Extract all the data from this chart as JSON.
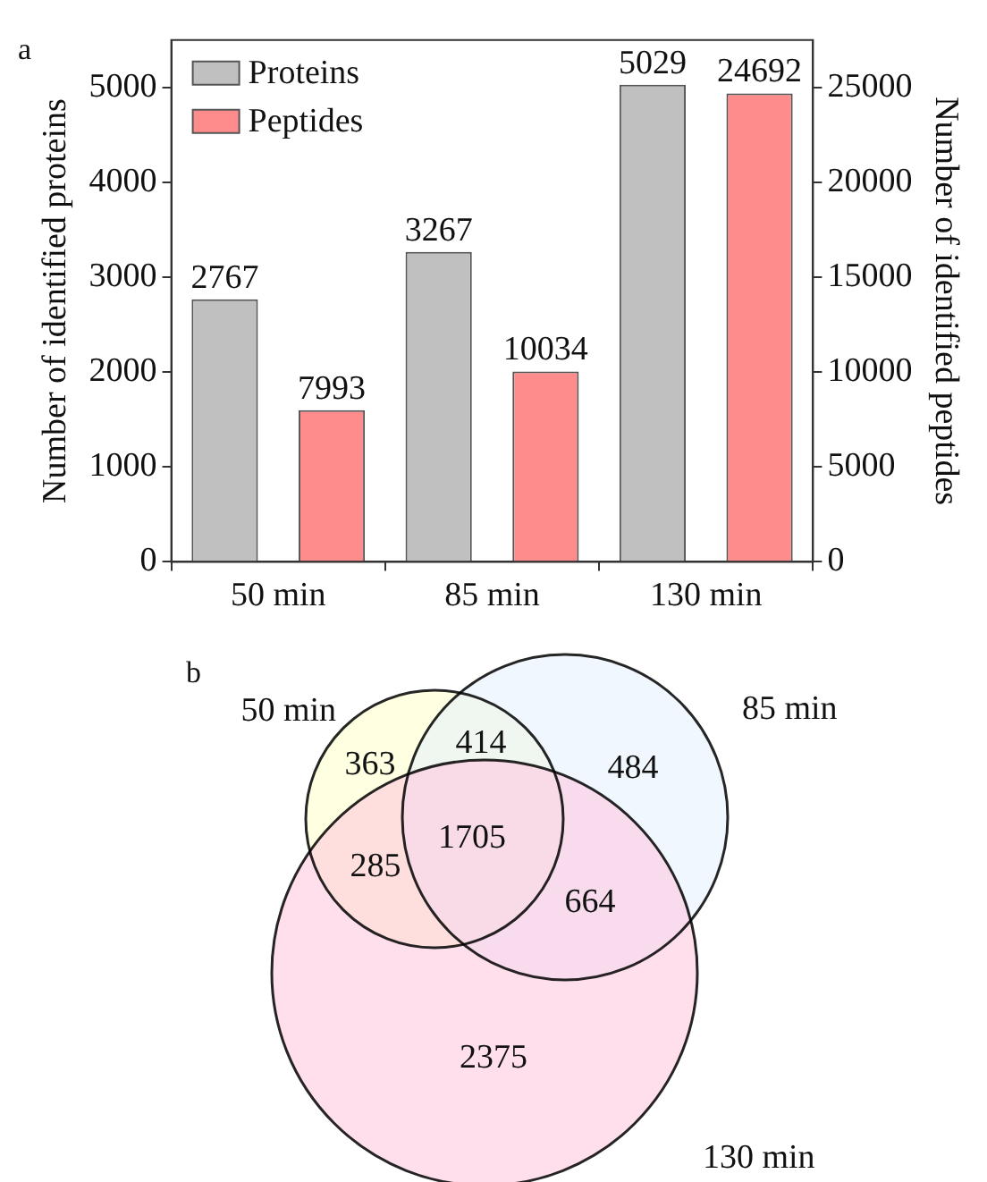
{
  "chart_data": [
    {
      "type": "bar",
      "categories": [
        "50 min",
        "85 min",
        "130 min"
      ],
      "series": [
        {
          "name": "Proteins",
          "color": "#c0c0c0",
          "values": [
            2767,
            3267,
            5029
          ]
        },
        {
          "name": "Peptides",
          "color": "#ff8c8c",
          "values": [
            7993,
            10034,
            24692
          ],
          "axis": "y2"
        }
      ],
      "ylabel": "Number of identified proteins",
      "y2label": "Number of identified peptides",
      "ylim": [
        0,
        5500
      ],
      "yticks": [
        0,
        1000,
        2000,
        3000,
        4000,
        5000
      ],
      "y2lim": [
        0,
        27500
      ],
      "y2ticks": [
        0,
        5000,
        10000,
        15000,
        20000,
        25000
      ],
      "data_labels": true,
      "legend": "top left",
      "annotations": [
        "a"
      ]
    },
    {
      "type": "other",
      "categories": [
        "50 min",
        "85 min",
        "130 min"
      ],
      "colors": [
        "#ffffc8",
        "#e4f0ff",
        "#ffc4dc"
      ],
      "annotations": [
        "b",
        "363",
        "414",
        "484",
        "285",
        "1705",
        "664",
        "2375"
      ]
    }
  ]
}
